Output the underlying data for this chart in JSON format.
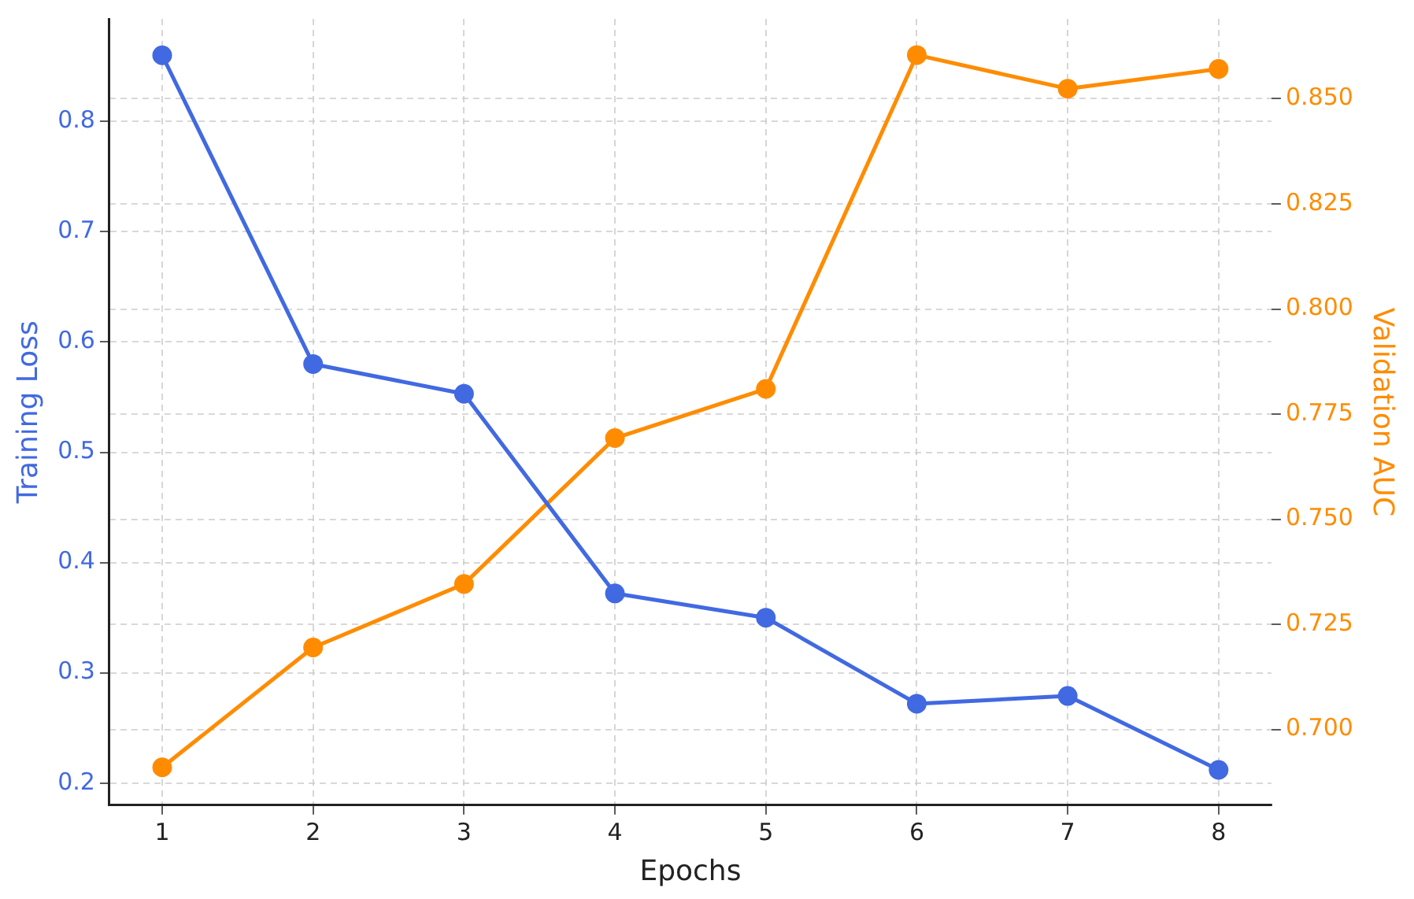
{
  "chart_data": {
    "type": "line",
    "xlabel": "Epochs",
    "ylabel": "Training Loss",
    "y2label": "Validation AUC",
    "x": [
      1,
      2,
      3,
      4,
      5,
      6,
      7,
      8
    ],
    "xlim": [
      0.65,
      8.35
    ],
    "xticks": [
      1,
      2,
      3,
      4,
      5,
      6,
      7,
      8
    ],
    "ylim": [
      0.18,
      0.893
    ],
    "yticks": [
      0.2,
      0.3,
      0.4,
      0.5,
      0.6,
      0.7,
      0.8
    ],
    "y2lim": [
      0.682,
      0.869
    ],
    "y2ticks": [
      {
        "value": 0.7,
        "label": "0.700"
      },
      0.725,
      {
        "value": 0.75,
        "label": "0.750"
      },
      0.775,
      {
        "value": 0.8,
        "label": "0.800"
      },
      0.825,
      {
        "value": 0.85,
        "label": "0.850"
      }
    ],
    "series": [
      {
        "color": "#4169e1",
        "values": [
          0.86,
          0.58,
          0.553,
          0.372,
          0.35,
          0.272,
          0.279,
          0.212
        ]
      },
      {
        "color": "#ff8c00",
        "axis": "y2",
        "values": [
          0.691,
          0.7195,
          0.7346,
          0.7693,
          0.781,
          0.8604,
          0.8524,
          0.8571
        ]
      }
    ],
    "grid": true,
    "marker": "circle",
    "line_style": "solid"
  }
}
